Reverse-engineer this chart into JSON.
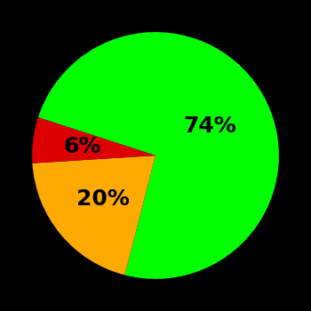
{
  "slices": [
    74,
    20,
    6
  ],
  "colors": [
    "#00ff00",
    "#ffaa00",
    "#dd0000"
  ],
  "labels": [
    "74%",
    "20%",
    "6%"
  ],
  "background_color": "#000000",
  "startangle": 162,
  "figsize": [
    3.5,
    3.5
  ],
  "dpi": 100,
  "label_fontsize": 18,
  "label_fontweight": "bold",
  "label_offsets": [
    0.5,
    0.55,
    0.6
  ]
}
